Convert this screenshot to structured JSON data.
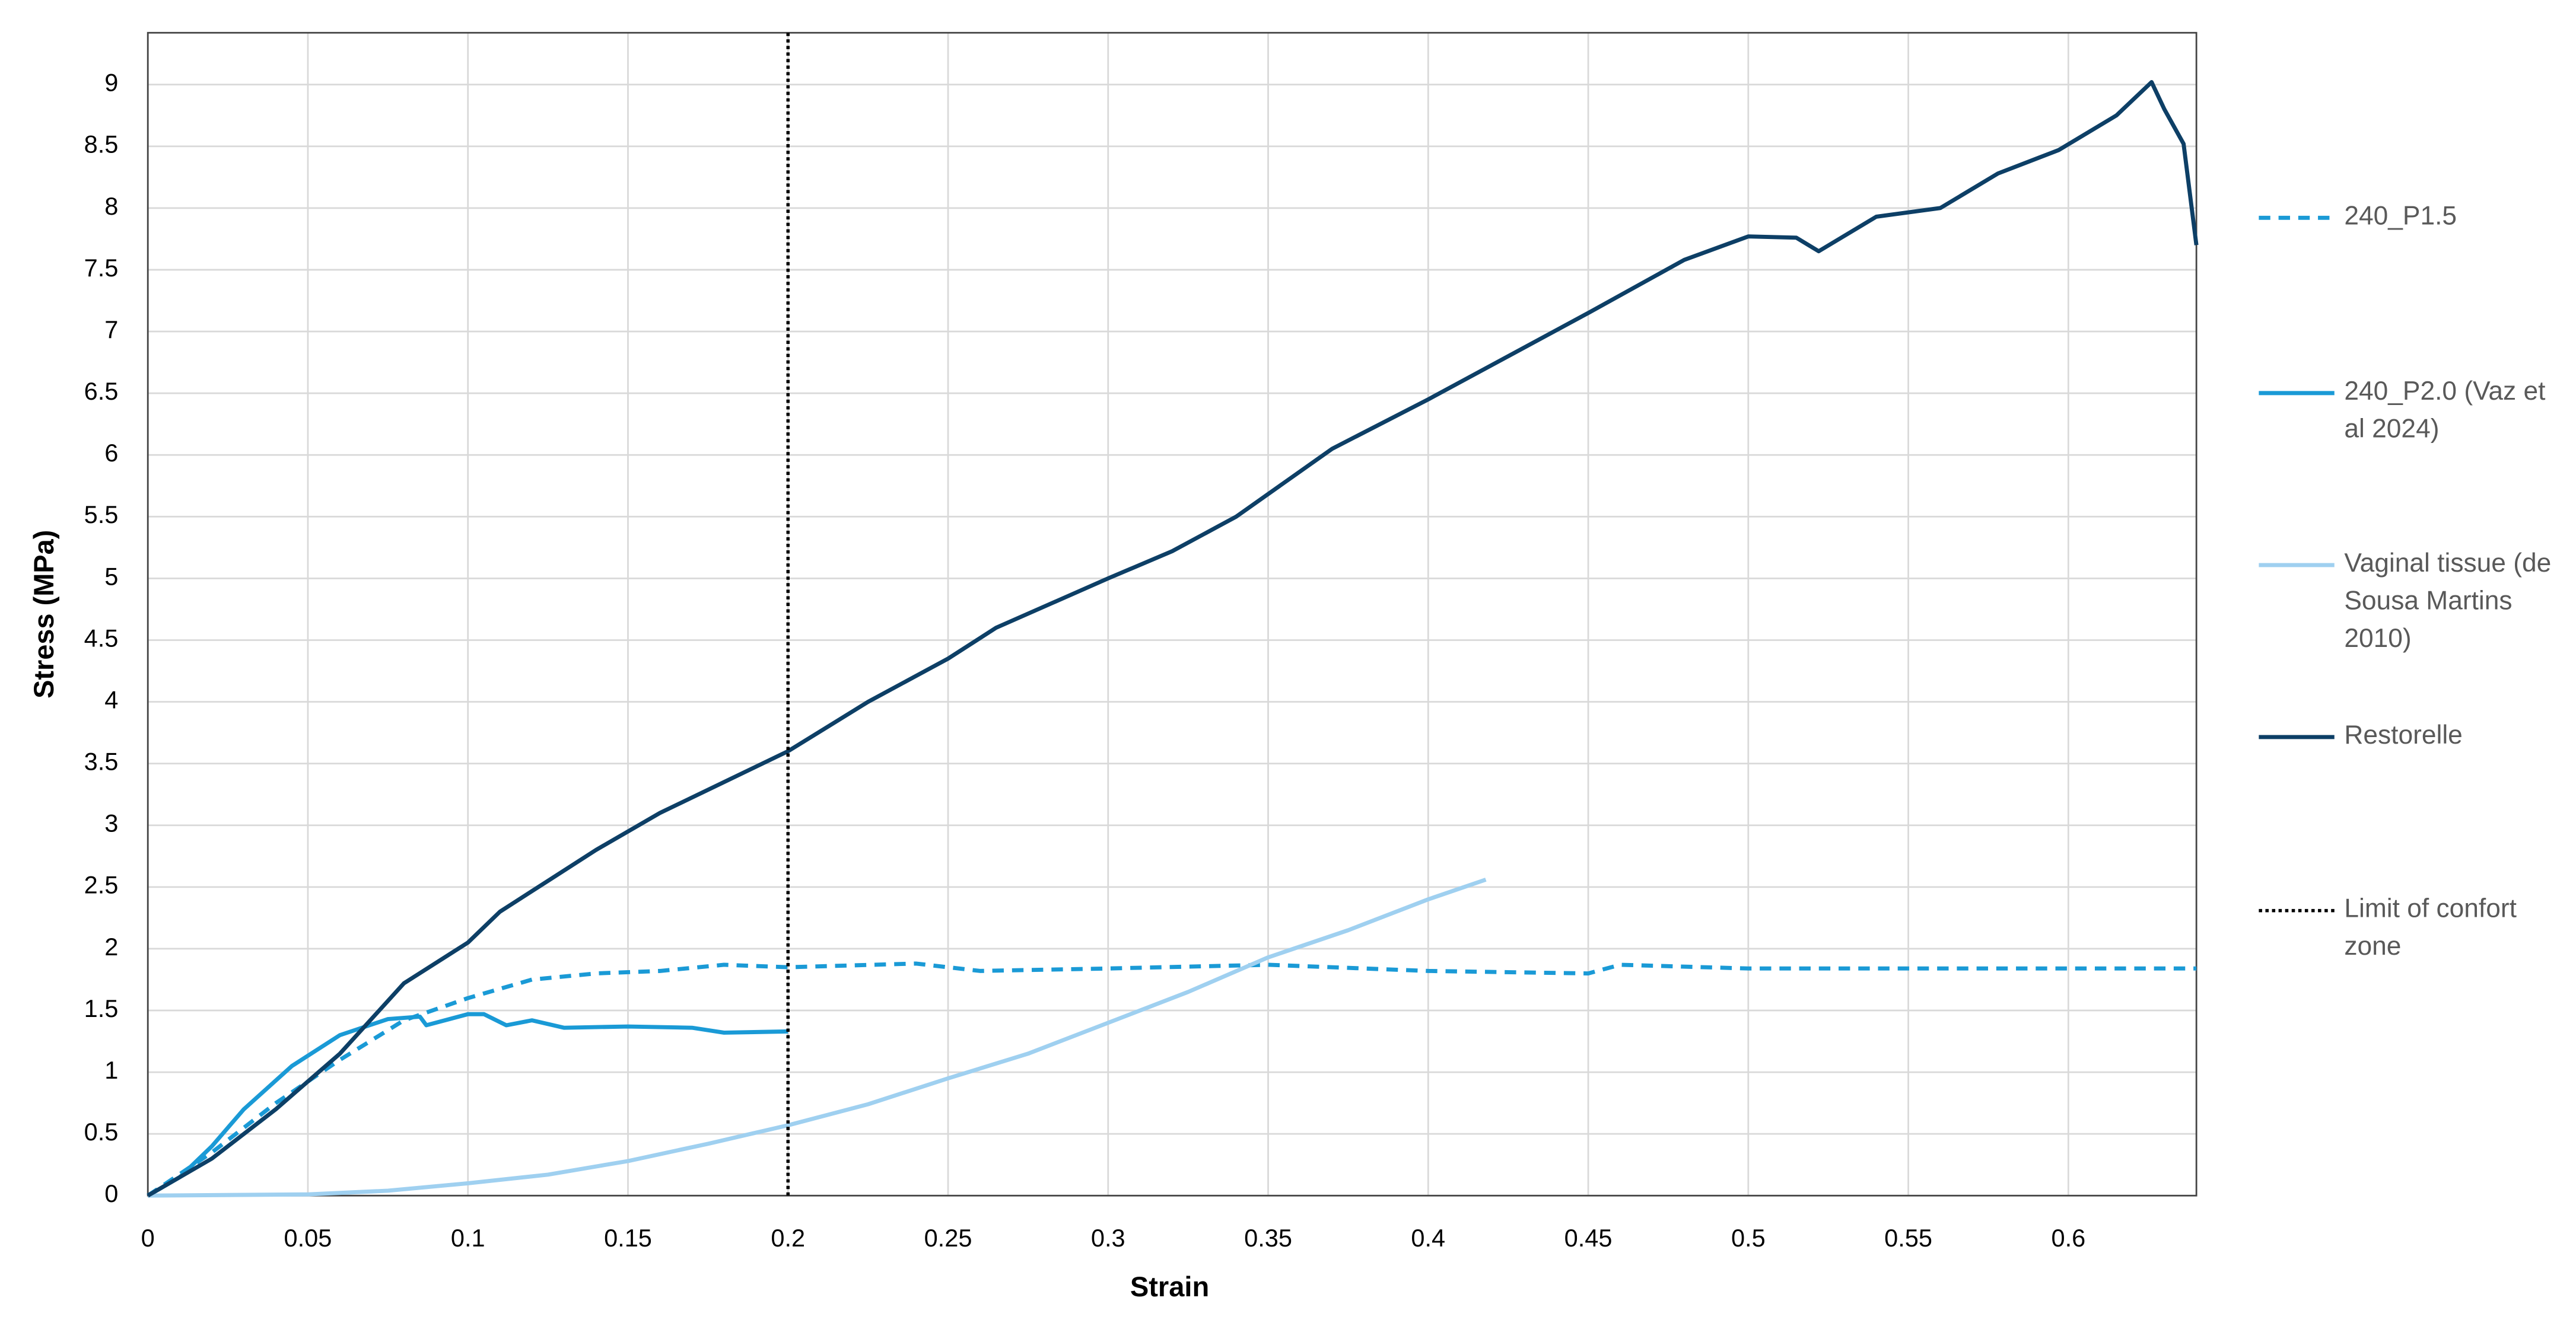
{
  "chart_data": {
    "type": "line",
    "xlabel": "Strain",
    "ylabel": "Stress (MPa)",
    "xlim": [
      0,
      0.64
    ],
    "ylim": [
      0,
      9.42
    ],
    "xticks": [
      0,
      0.05,
      0.1,
      0.15,
      0.2,
      0.25,
      0.3,
      0.35,
      0.4,
      0.45,
      0.5,
      0.55,
      0.6
    ],
    "yticks": [
      0,
      0.5,
      1,
      1.5,
      2,
      2.5,
      3,
      3.5,
      4,
      4.5,
      5,
      5.5,
      6,
      6.5,
      7,
      7.5,
      8,
      8.5,
      9
    ],
    "grid": true,
    "series": [
      {
        "name": "240_P1.5",
        "color": "#1a9ad6",
        "dash": "dashed",
        "x": [
          0,
          0.02,
          0.04,
          0.06,
          0.08,
          0.1,
          0.12,
          0.14,
          0.16,
          0.18,
          0.2,
          0.24,
          0.26,
          0.3,
          0.35,
          0.4,
          0.45,
          0.46,
          0.5,
          0.55,
          0.6,
          0.64
        ],
        "values": [
          0,
          0.35,
          0.75,
          1.1,
          1.42,
          1.6,
          1.75,
          1.8,
          1.82,
          1.87,
          1.85,
          1.88,
          1.82,
          1.84,
          1.87,
          1.82,
          1.8,
          1.87,
          1.84,
          1.84,
          1.84,
          1.84
        ]
      },
      {
        "name": "240_P2.0 (Vaz et al 2024)",
        "color": "#1a9ad6",
        "dash": "solid",
        "x": [
          0,
          0.01,
          0.02,
          0.03,
          0.045,
          0.06,
          0.075,
          0.085,
          0.087,
          0.1,
          0.105,
          0.112,
          0.12,
          0.13,
          0.15,
          0.17,
          0.18,
          0.2
        ],
        "values": [
          0,
          0.15,
          0.4,
          0.7,
          1.05,
          1.3,
          1.43,
          1.45,
          1.38,
          1.47,
          1.47,
          1.38,
          1.42,
          1.36,
          1.37,
          1.36,
          1.32,
          1.33
        ]
      },
      {
        "name": "Vaginal tissue (de Sousa Martins 2010)",
        "color": "#9fd0f0",
        "dash": "solid",
        "x": [
          0,
          0.05,
          0.075,
          0.1,
          0.125,
          0.15,
          0.175,
          0.2,
          0.225,
          0.25,
          0.275,
          0.3,
          0.325,
          0.35,
          0.375,
          0.4,
          0.418
        ],
        "values": [
          0,
          0.01,
          0.04,
          0.1,
          0.17,
          0.28,
          0.42,
          0.57,
          0.74,
          0.95,
          1.15,
          1.4,
          1.65,
          1.93,
          2.15,
          2.4,
          2.56
        ]
      },
      {
        "name": "Restorelle",
        "color": "#0d3f66",
        "dash": "solid",
        "x": [
          0,
          0.02,
          0.04,
          0.06,
          0.08,
          0.1,
          0.11,
          0.125,
          0.14,
          0.16,
          0.18,
          0.2,
          0.225,
          0.25,
          0.265,
          0.3,
          0.32,
          0.34,
          0.37,
          0.4,
          0.425,
          0.45,
          0.48,
          0.5,
          0.515,
          0.522,
          0.54,
          0.56,
          0.578,
          0.597,
          0.615,
          0.626,
          0.63,
          0.636,
          0.64
        ],
        "values": [
          0,
          0.3,
          0.7,
          1.15,
          1.72,
          2.05,
          2.3,
          2.55,
          2.8,
          3.1,
          3.35,
          3.6,
          4.0,
          4.35,
          4.6,
          5.0,
          5.22,
          5.5,
          6.05,
          6.45,
          6.8,
          7.15,
          7.58,
          7.77,
          7.76,
          7.65,
          7.93,
          8.0,
          8.28,
          8.47,
          8.75,
          9.02,
          8.8,
          8.52,
          7.7
        ]
      },
      {
        "name": "Limit of confort zone",
        "color": "#000000",
        "dash": "dotted",
        "x": [
          0.2,
          0.2
        ],
        "values": [
          0,
          9.42
        ]
      }
    ]
  }
}
